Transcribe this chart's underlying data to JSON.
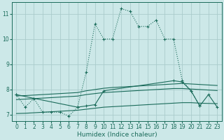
{
  "xlabel": "Humidex (Indice chaleur)",
  "bg_color": "#cce8e8",
  "grid_color": "#aacccc",
  "line_color": "#1a6b5a",
  "xlim": [
    -0.5,
    23.5
  ],
  "ylim": [
    6.75,
    11.45
  ],
  "yticks": [
    7,
    8,
    9,
    10,
    11
  ],
  "xticks": [
    0,
    1,
    2,
    3,
    4,
    5,
    6,
    7,
    8,
    9,
    10,
    11,
    12,
    13,
    14,
    15,
    16,
    17,
    18,
    19,
    20,
    21,
    22,
    23
  ],
  "x_all": [
    0,
    1,
    2,
    3,
    4,
    5,
    6,
    7,
    8,
    9,
    10,
    11,
    12,
    13,
    14,
    15,
    16,
    17,
    18,
    19,
    20,
    21,
    22,
    23
  ],
  "dotted_line": [
    7.8,
    7.3,
    7.65,
    7.1,
    7.1,
    7.1,
    6.95,
    7.3,
    8.7,
    10.6,
    10.0,
    10.0,
    11.2,
    11.1,
    10.5,
    10.5,
    10.75,
    10.0,
    10.0,
    8.35,
    7.95,
    7.35,
    null,
    null
  ],
  "solid_markers_x": [
    0,
    2,
    7,
    8,
    9,
    10,
    18,
    19,
    20,
    21,
    22,
    23
  ],
  "solid_markers_y": [
    7.8,
    7.65,
    7.3,
    7.35,
    7.4,
    7.95,
    8.35,
    8.3,
    7.95,
    7.35,
    7.8,
    7.3
  ],
  "line_upper_x": [
    0,
    1,
    2,
    3,
    4,
    5,
    6,
    7,
    8,
    9,
    10,
    11,
    12,
    13,
    14,
    15,
    16,
    17,
    18,
    19,
    20,
    21,
    22,
    23
  ],
  "line_upper_y": [
    7.75,
    7.76,
    7.78,
    7.8,
    7.82,
    7.84,
    7.86,
    7.88,
    7.95,
    8.0,
    8.05,
    8.08,
    8.1,
    8.12,
    8.14,
    8.16,
    8.18,
    8.2,
    8.22,
    8.24,
    8.22,
    8.2,
    8.18,
    8.16
  ],
  "line_mid_x": [
    0,
    1,
    2,
    3,
    4,
    5,
    6,
    7,
    8,
    9,
    10,
    11,
    12,
    13,
    14,
    15,
    16,
    17,
    18,
    19,
    20,
    21,
    22,
    23
  ],
  "line_mid_y": [
    7.6,
    7.62,
    7.64,
    7.66,
    7.68,
    7.7,
    7.72,
    7.74,
    7.8,
    7.84,
    7.88,
    7.9,
    7.92,
    7.94,
    7.96,
    7.98,
    8.0,
    8.02,
    8.04,
    8.04,
    8.02,
    8.0,
    7.98,
    7.96
  ],
  "line_lower_x": [
    0,
    1,
    2,
    3,
    4,
    5,
    6,
    7,
    8,
    9,
    10,
    11,
    12,
    13,
    14,
    15,
    16,
    17,
    18,
    19,
    20,
    21,
    22,
    23
  ],
  "line_lower_y": [
    7.05,
    7.06,
    7.08,
    7.1,
    7.12,
    7.14,
    7.16,
    7.18,
    7.22,
    7.26,
    7.3,
    7.32,
    7.34,
    7.36,
    7.38,
    7.4,
    7.42,
    7.44,
    7.46,
    7.48,
    7.48,
    7.46,
    7.45,
    7.44
  ]
}
